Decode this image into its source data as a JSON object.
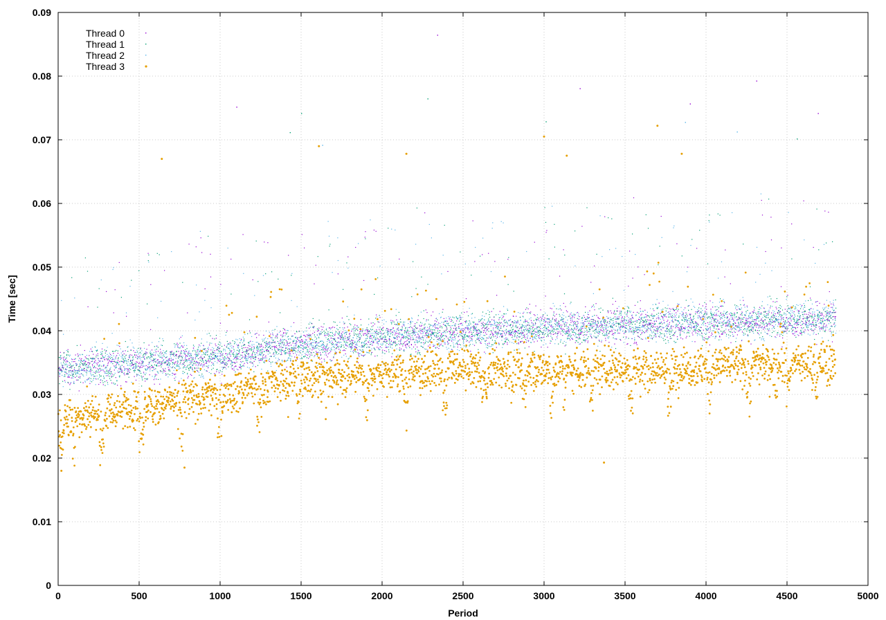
{
  "chart_data": {
    "type": "scatter",
    "title": "",
    "xlabel": "Period",
    "ylabel": "Time [sec]",
    "xlim": [
      0,
      5000
    ],
    "ylim": [
      0,
      0.09
    ],
    "xticks": [
      0,
      500,
      1000,
      1500,
      2000,
      2500,
      3000,
      3500,
      4000,
      4500,
      5000
    ],
    "yticks": [
      0,
      0.01,
      0.02,
      0.03,
      0.04,
      0.05,
      0.06,
      0.07,
      0.08,
      0.09
    ],
    "ytick_labels": [
      "0",
      "0.01",
      "0.02",
      "0.03",
      "0.04",
      "0.05",
      "0.06",
      "0.07",
      "0.08",
      "0.09"
    ],
    "grid": true,
    "legend_position": "top-left",
    "x_range": [
      1,
      4800
    ],
    "series": [
      {
        "name": "Thread 0",
        "color": "#9400d3",
        "marker": "dot",
        "typical_range": [
          0.03,
          0.05
        ],
        "trend": [
          [
            0,
            0.034
          ],
          [
            1000,
            0.036
          ],
          [
            1500,
            0.038
          ],
          [
            2500,
            0.04
          ],
          [
            3500,
            0.041
          ],
          [
            4800,
            0.042
          ]
        ],
        "outliers": [
          [
            2340,
            0.0865
          ],
          [
            4310,
            0.0793
          ],
          [
            3220,
            0.0781
          ],
          [
            3900,
            0.0757
          ],
          [
            1100,
            0.0752
          ],
          [
            4690,
            0.0742
          ]
        ]
      },
      {
        "name": "Thread 1",
        "color": "#009e73",
        "marker": "dot",
        "typical_range": [
          0.03,
          0.05
        ],
        "trend": [
          [
            0,
            0.034
          ],
          [
            1000,
            0.036
          ],
          [
            1500,
            0.038
          ],
          [
            2500,
            0.04
          ],
          [
            3500,
            0.041
          ],
          [
            4800,
            0.042
          ]
        ],
        "outliers": [
          [
            2280,
            0.0765
          ],
          [
            1500,
            0.0742
          ],
          [
            3010,
            0.0729
          ],
          [
            4560,
            0.0702
          ],
          [
            1430,
            0.0712
          ]
        ]
      },
      {
        "name": "Thread 2",
        "color": "#56b4e9",
        "marker": "dot",
        "typical_range": [
          0.03,
          0.05
        ],
        "trend": [
          [
            0,
            0.034
          ],
          [
            1000,
            0.036
          ],
          [
            1500,
            0.038
          ],
          [
            2500,
            0.04
          ],
          [
            3500,
            0.041
          ],
          [
            4800,
            0.042
          ]
        ],
        "outliers": [
          [
            3870,
            0.0728
          ],
          [
            4190,
            0.0713
          ],
          [
            1630,
            0.0692
          ]
        ]
      },
      {
        "name": "Thread 3",
        "color": "#e69f00",
        "marker": "circle",
        "typical_range": [
          0.02,
          0.045
        ],
        "trend": [
          [
            0,
            0.026
          ],
          [
            1000,
            0.03
          ],
          [
            1500,
            0.033
          ],
          [
            2500,
            0.034
          ],
          [
            3500,
            0.034
          ],
          [
            4800,
            0.035
          ]
        ],
        "outliers": [
          [
            3000,
            0.0705
          ],
          [
            640,
            0.067
          ],
          [
            1610,
            0.069
          ],
          [
            3700,
            0.0722
          ],
          [
            2150,
            0.0678
          ],
          [
            3850,
            0.0678
          ],
          [
            3140,
            0.0675
          ],
          [
            20,
            0.018
          ],
          [
            780,
            0.0185
          ],
          [
            3370,
            0.0193
          ]
        ]
      }
    ]
  }
}
